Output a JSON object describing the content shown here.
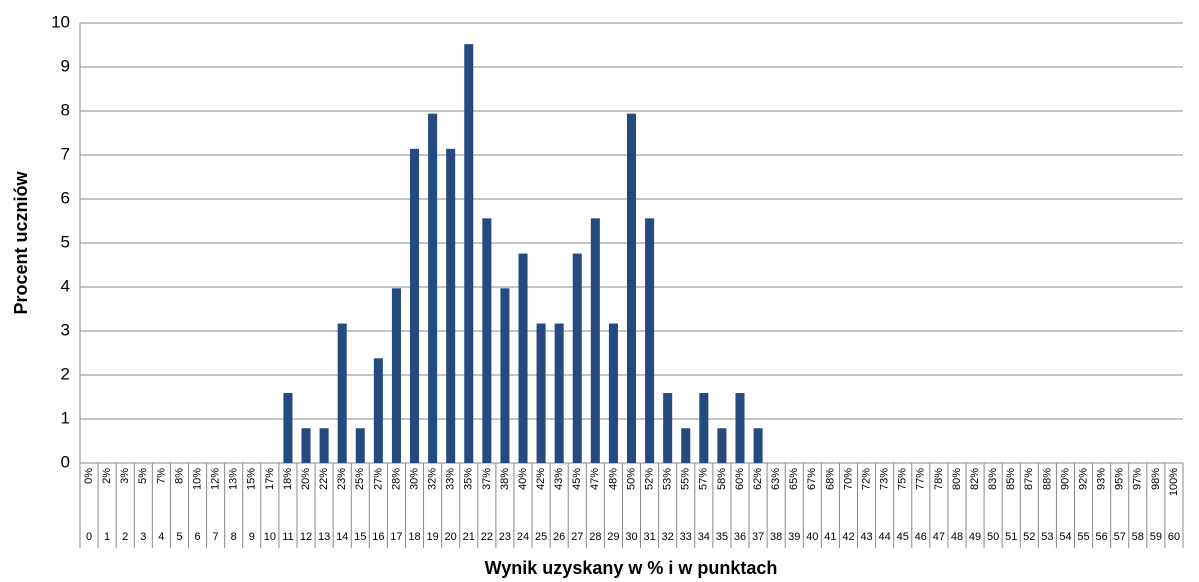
{
  "chart_data": {
    "type": "bar",
    "ylabel": "Procent uczniów",
    "xlabel": "Wynik uzyskany w % i w punktach",
    "categories": [
      "0",
      "1",
      "2",
      "3",
      "4",
      "5",
      "6",
      "7",
      "8",
      "9",
      "10",
      "11",
      "12",
      "13",
      "14",
      "15",
      "16",
      "17",
      "18",
      "19",
      "20",
      "21",
      "22",
      "23",
      "24",
      "25",
      "26",
      "27",
      "28",
      "29",
      "30",
      "31",
      "32",
      "33",
      "34",
      "35",
      "36",
      "37",
      "38",
      "39",
      "40",
      "41",
      "42",
      "43",
      "44",
      "45",
      "46",
      "47",
      "48",
      "49",
      "50",
      "51",
      "52",
      "53",
      "54",
      "55",
      "56",
      "57",
      "58",
      "59",
      "60"
    ],
    "percent_labels": [
      "0%",
      "2%",
      "3%",
      "5%",
      "7%",
      "8%",
      "10%",
      "12%",
      "13%",
      "15%",
      "17%",
      "18%",
      "20%",
      "22%",
      "23%",
      "25%",
      "27%",
      "28%",
      "30%",
      "32%",
      "33%",
      "35%",
      "37%",
      "38%",
      "40%",
      "42%",
      "43%",
      "45%",
      "47%",
      "48%",
      "50%",
      "52%",
      "53%",
      "55%",
      "57%",
      "58%",
      "60%",
      "62%",
      "63%",
      "65%",
      "67%",
      "68%",
      "70%",
      "72%",
      "73%",
      "75%",
      "77%",
      "78%",
      "80%",
      "82%",
      "83%",
      "85%",
      "87%",
      "88%",
      "90%",
      "92%",
      "93%",
      "95%",
      "97%",
      "98%",
      "100%"
    ],
    "values": [
      0,
      0,
      0,
      0,
      0,
      0,
      0,
      0,
      0,
      0,
      0,
      1.59,
      0.79,
      0.79,
      3.17,
      0.79,
      2.38,
      3.97,
      7.14,
      7.94,
      7.14,
      9.52,
      5.56,
      3.97,
      4.76,
      3.17,
      3.17,
      4.76,
      5.56,
      3.17,
      7.94,
      5.56,
      1.59,
      0.79,
      1.59,
      0.79,
      1.59,
      0.79,
      0,
      0,
      0,
      0,
      0,
      0,
      0,
      0,
      0,
      0,
      0,
      0,
      0,
      0,
      0,
      0,
      0,
      0,
      0,
      0,
      0,
      0,
      0
    ],
    "color": "#254a7f",
    "ylim": [
      0,
      10
    ],
    "yticks": [
      0,
      1,
      2,
      3,
      4,
      5,
      6,
      7,
      8,
      9,
      10
    ],
    "grid": true
  }
}
